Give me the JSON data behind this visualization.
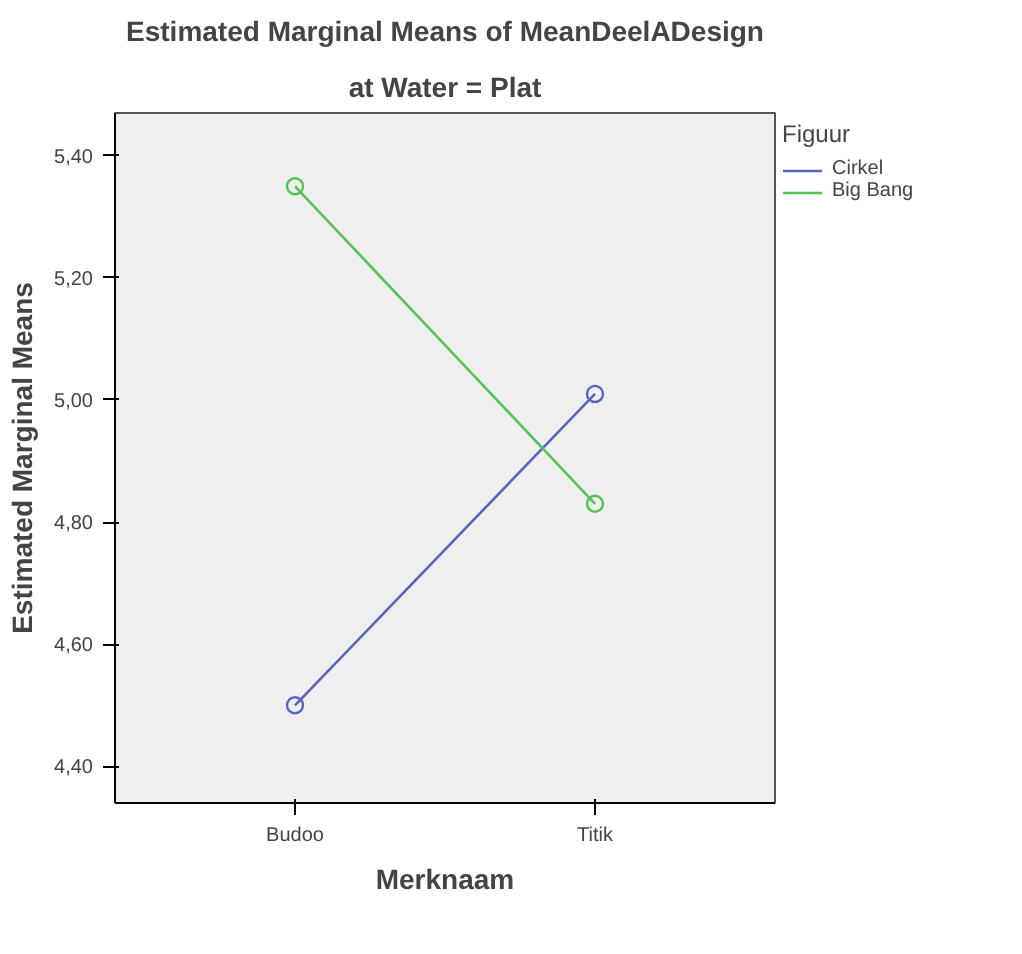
{
  "chart_data": {
    "type": "line",
    "title": "Estimated Marginal Means of MeanDeelADesign",
    "subtitle": "at Water = Plat",
    "xlabel": "Merknaam",
    "ylabel": "Estimated Marginal Means",
    "legend_title": "Figuur",
    "categories": [
      "Budoo",
      "Titik"
    ],
    "series": [
      {
        "name": "Cirkel",
        "color": "#5566bb",
        "values": [
          4.5,
          5.01
        ]
      },
      {
        "name": "Big Bang",
        "color": "#55c255",
        "values": [
          5.35,
          4.83
        ]
      }
    ],
    "ylim": [
      4.34,
      5.47
    ],
    "yticks": [
      {
        "value": 4.4,
        "label": "4,40"
      },
      {
        "value": 4.6,
        "label": "4,60"
      },
      {
        "value": 4.8,
        "label": "4,80"
      },
      {
        "value": 5.0,
        "label": "5,00"
      },
      {
        "value": 5.2,
        "label": "5,20"
      },
      {
        "value": 5.4,
        "label": "5,40"
      }
    ],
    "grid": false,
    "legend": "top right",
    "marker": "circle",
    "line_style": "solid"
  }
}
